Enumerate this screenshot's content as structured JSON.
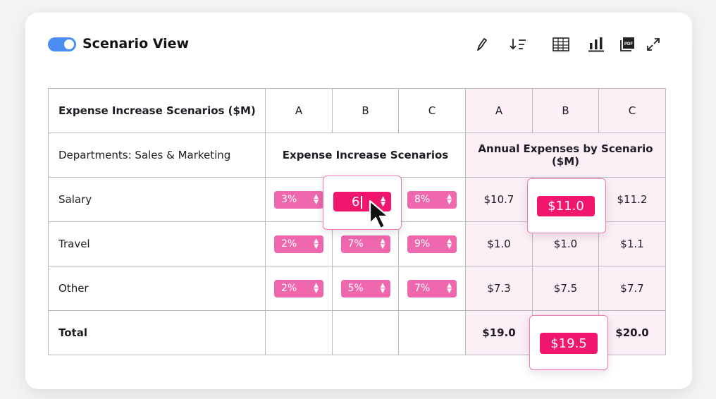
{
  "header": {
    "title": "Scenario View",
    "toggle_on": true,
    "accent_color": "#4a8cf0",
    "toolbar_icons": [
      "pencil-icon",
      "sort-icon",
      "table-icon",
      "bar-chart-icon",
      "pdf-icon",
      "expand-icon"
    ],
    "pdf_icon_text": "PDF"
  },
  "table": {
    "head": {
      "title": "Expense Increase Scenarios ($M)",
      "scenarios_left": [
        "A",
        "B",
        "C"
      ],
      "scenarios_right": [
        "A",
        "B",
        "C"
      ]
    },
    "sub": {
      "label": "Departments: Sales & Marketing",
      "left_group": "Expense Increase Scenarios",
      "right_group": "Annual Expenses by Scenario ($M)"
    },
    "rows": [
      {
        "name": "Salary",
        "pct": [
          "3%",
          "6",
          "8%"
        ],
        "exp": [
          "$10.7",
          "$11.0",
          "$11.2"
        ]
      },
      {
        "name": "Travel",
        "pct": [
          "2%",
          "7%",
          "9%"
        ],
        "exp": [
          "$1.0",
          "$1.0",
          "$1.1"
        ]
      },
      {
        "name": "Other",
        "pct": [
          "2%",
          "5%",
          "7%"
        ],
        "exp": [
          "$7.3",
          "$7.5",
          "$7.7"
        ]
      }
    ],
    "total": {
      "label": "Total",
      "exp": [
        "$19.0",
        "$19.5",
        "$20.0"
      ]
    }
  },
  "colors": {
    "pill": "#ef67ad",
    "highlight": "#f0166e",
    "pink_bg": "#fcf0f6"
  }
}
